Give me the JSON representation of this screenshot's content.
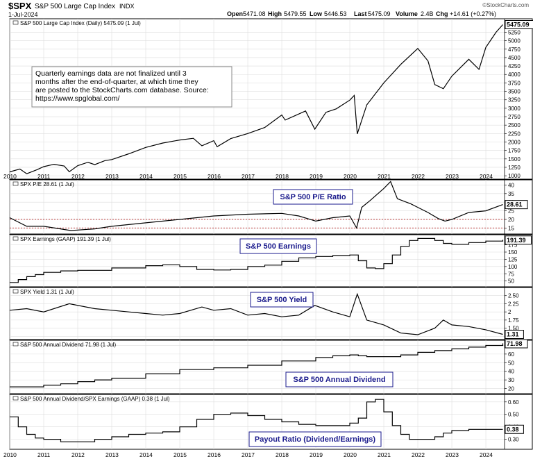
{
  "header": {
    "symbol": "$SPX",
    "name": "S&P 500 Large Cap Index",
    "exchange": "INDX",
    "date": "1-Jul-2024",
    "brand": "©StockCharts.com",
    "quote": {
      "open_label": "Open",
      "open": "5471.08",
      "high_label": "High",
      "high": "5479.55",
      "low_label": "Low",
      "low": "5446.53",
      "last_label": "Last",
      "last": "5475.09",
      "volume_label": "Volume",
      "volume": "2.4B",
      "chg_label": "Chg",
      "chg": "+14.61 (+0.27%)"
    }
  },
  "x_axis_years": [
    "2010",
    "2011",
    "2012",
    "2013",
    "2014",
    "2015",
    "2016",
    "2017",
    "2018",
    "2019",
    "2020",
    "2021",
    "2022",
    "2023",
    "2024"
  ],
  "colors": {
    "line": "#000000",
    "grid": "#dddddd",
    "reference_line": "#b22222",
    "callout_text": "#1a1a8c",
    "callout_border": "#1a1a8c"
  },
  "chart_data": [
    {
      "id": "price",
      "type": "line",
      "legend": "S&P 500 Large Cap Index (Daily) 5475.09 (1 Jul)",
      "last_label": "5475.09",
      "y_ticks": [
        1000,
        1250,
        1500,
        1750,
        2000,
        2250,
        2500,
        2750,
        3000,
        3250,
        3500,
        3750,
        4000,
        4250,
        4500,
        4750,
        5000,
        5250
      ],
      "ylim": [
        900,
        5650
      ],
      "note": "Quarterly earnings data are not finalized until 3 months after the end-of-quarter, at which time they are posted to the StockCharts.com database. Source: https://www.spglobal.com/",
      "x": [
        2010.0,
        2010.3,
        2010.5,
        2010.8,
        2011.0,
        2011.3,
        2011.6,
        2011.75,
        2012.0,
        2012.3,
        2012.5,
        2012.8,
        2013.0,
        2013.5,
        2014.0,
        2014.5,
        2015.0,
        2015.4,
        2015.65,
        2016.0,
        2016.1,
        2016.5,
        2017.0,
        2017.5,
        2018.0,
        2018.1,
        2018.7,
        2018.97,
        2019.3,
        2019.6,
        2020.0,
        2020.13,
        2020.22,
        2020.5,
        2021.0,
        2021.5,
        2022.0,
        2022.3,
        2022.5,
        2022.75,
        2023.0,
        2023.5,
        2023.8,
        2024.0,
        2024.3,
        2024.5
      ],
      "y": [
        1115,
        1200,
        1060,
        1180,
        1270,
        1340,
        1290,
        1120,
        1300,
        1400,
        1330,
        1450,
        1480,
        1650,
        1840,
        1970,
        2060,
        2110,
        1890,
        2040,
        1860,
        2100,
        2250,
        2430,
        2800,
        2650,
        2920,
        2380,
        2880,
        2980,
        3240,
        3380,
        2240,
        3100,
        3750,
        4300,
        4770,
        4400,
        3700,
        3580,
        3950,
        4450,
        4150,
        4800,
        5250,
        5475
      ]
    },
    {
      "id": "pe",
      "type": "line",
      "legend": "SPX P/E 28.61 (1 Jul)",
      "callout": "S&P 500 P/E Ratio",
      "last_label": "28.61",
      "y_ticks": [
        15,
        20,
        25,
        30,
        35,
        40
      ],
      "ylim": [
        11.5,
        43
      ],
      "reference_lines": [
        20,
        15
      ],
      "x": [
        2010.0,
        2010.5,
        2011.0,
        2011.8,
        2012.5,
        2013.0,
        2013.5,
        2014.0,
        2015.0,
        2016.0,
        2017.0,
        2018.0,
        2018.5,
        2019.0,
        2019.5,
        2020.0,
        2020.2,
        2020.35,
        2020.6,
        2021.0,
        2021.2,
        2021.4,
        2021.8,
        2022.0,
        2022.3,
        2022.6,
        2022.8,
        2023.0,
        2023.5,
        2024.0,
        2024.5
      ],
      "y": [
        21,
        16,
        16,
        13.5,
        14.5,
        16,
        17,
        18,
        20,
        22,
        23,
        23.5,
        22,
        19,
        21,
        22,
        15,
        27,
        31,
        38,
        42,
        32,
        29,
        27,
        24,
        20.5,
        19,
        20,
        24,
        25,
        28.61
      ]
    },
    {
      "id": "earnings",
      "type": "step",
      "legend": "SPX Earnings (GAAP) 191.39 (1 Jul)",
      "callout": "S&P 500 Earnings",
      "last_label": "191.39",
      "y_ticks": [
        50,
        75,
        100,
        125,
        150,
        175
      ],
      "ylim": [
        30,
        210
      ],
      "x": [
        2010.0,
        2010.25,
        2010.5,
        2010.75,
        2011.0,
        2011.5,
        2012.0,
        2013.0,
        2014.0,
        2014.5,
        2015.0,
        2015.5,
        2016.0,
        2016.5,
        2017.0,
        2017.5,
        2018.0,
        2018.5,
        2019.0,
        2019.5,
        2020.0,
        2020.25,
        2020.5,
        2020.75,
        2021.0,
        2021.25,
        2021.5,
        2021.75,
        2022.0,
        2022.5,
        2022.75,
        2023.0,
        2023.5,
        2024.0,
        2024.5
      ],
      "y": [
        45,
        55,
        65,
        72,
        80,
        85,
        87,
        95,
        103,
        106,
        100,
        90,
        88,
        90,
        100,
        105,
        118,
        130,
        135,
        138,
        140,
        120,
        95,
        93,
        110,
        140,
        170,
        190,
        197,
        190,
        180,
        177,
        183,
        188,
        191.39
      ]
    },
    {
      "id": "yield",
      "type": "line",
      "legend": "SPX Yield 1.31 (1 Jul)",
      "callout": "S&P 500 Yield",
      "last_label": "1.31",
      "y_ticks": [
        1.25,
        1.5,
        1.75,
        2.0,
        2.25,
        2.5
      ],
      "ylim": [
        1.15,
        2.75
      ],
      "x": [
        2010.0,
        2010.5,
        2011.0,
        2011.75,
        2012.5,
        2013.0,
        2013.5,
        2014.0,
        2014.5,
        2015.0,
        2015.65,
        2016.0,
        2016.5,
        2017.0,
        2017.5,
        2018.0,
        2018.5,
        2018.97,
        2019.5,
        2020.0,
        2020.22,
        2020.5,
        2021.0,
        2021.5,
        2022.0,
        2022.5,
        2022.75,
        2023.0,
        2023.5,
        2024.0,
        2024.5
      ],
      "y": [
        2.05,
        2.1,
        2.0,
        2.25,
        2.1,
        2.05,
        2.0,
        1.95,
        1.9,
        1.95,
        2.15,
        2.05,
        2.1,
        1.9,
        1.95,
        1.85,
        1.9,
        2.2,
        2.0,
        1.85,
        2.55,
        1.75,
        1.6,
        1.35,
        1.3,
        1.5,
        1.75,
        1.6,
        1.55,
        1.45,
        1.31
      ]
    },
    {
      "id": "dividend",
      "type": "step",
      "legend": "S&P 500 Annual Dividend 71.98 (1 Jul)",
      "callout": "S&P 500 Annual Dividend",
      "last_label": "71.98",
      "y_ticks": [
        20,
        30,
        40,
        50,
        60,
        70
      ],
      "ylim": [
        14,
        76
      ],
      "x": [
        2010.0,
        2010.5,
        2011.0,
        2011.5,
        2012.0,
        2012.5,
        2013.0,
        2014.0,
        2015.0,
        2016.0,
        2017.0,
        2018.0,
        2019.0,
        2019.5,
        2020.0,
        2020.25,
        2020.5,
        2021.0,
        2021.5,
        2022.0,
        2022.5,
        2023.0,
        2023.5,
        2024.0,
        2024.5
      ],
      "y": [
        22,
        22,
        24,
        25.5,
        28,
        30,
        32,
        37,
        42,
        44,
        47,
        52,
        56,
        58,
        59,
        58,
        57,
        57,
        59,
        62,
        64,
        66,
        68,
        70,
        71.98
      ]
    },
    {
      "id": "payout",
      "type": "step",
      "legend": "S&P 500 Annual Dividend/SPX Earnings (GAAP) 0.38 (1 Jul)",
      "callout": "Payout Ratio (Dividend/Earnings)",
      "last_label": "0.38",
      "y_ticks": [
        0.3,
        0.4,
        0.5,
        0.6
      ],
      "ylim": [
        0.22,
        0.66
      ],
      "x": [
        2010.0,
        2010.25,
        2010.5,
        2010.75,
        2011.0,
        2011.5,
        2012.0,
        2012.5,
        2013.0,
        2013.5,
        2014.0,
        2014.5,
        2015.0,
        2015.5,
        2016.0,
        2016.5,
        2017.0,
        2017.5,
        2018.0,
        2018.5,
        2019.0,
        2019.5,
        2020.0,
        2020.25,
        2020.5,
        2020.75,
        2021.0,
        2021.25,
        2021.5,
        2021.75,
        2022.0,
        2022.5,
        2022.75,
        2023.0,
        2023.5,
        2024.0,
        2024.5
      ],
      "y": [
        0.48,
        0.4,
        0.34,
        0.31,
        0.3,
        0.28,
        0.28,
        0.3,
        0.32,
        0.34,
        0.35,
        0.36,
        0.4,
        0.46,
        0.5,
        0.51,
        0.49,
        0.46,
        0.44,
        0.42,
        0.41,
        0.41,
        0.43,
        0.47,
        0.6,
        0.62,
        0.52,
        0.41,
        0.34,
        0.3,
        0.3,
        0.32,
        0.35,
        0.37,
        0.38,
        0.38,
        0.38
      ]
    }
  ]
}
